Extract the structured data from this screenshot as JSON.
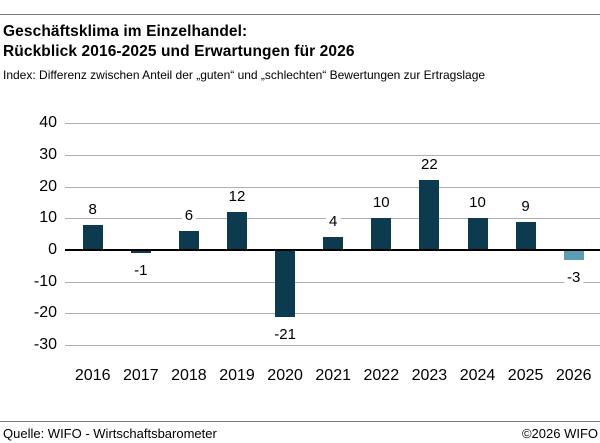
{
  "header": {
    "title_line1": "Geschäftsklima im Einzelhandel:",
    "title_line2": "Rückblick 2016-2025 und Erwartungen für 2026",
    "subtitle": "Index: Differenz zwischen Anteil der „guten“ und „schlechten“ Bewertungen zur Ertragslage"
  },
  "footer": {
    "source": "Quelle: WIFO - Wirtschaftsbarometer",
    "copyright": "©2026 WIFO"
  },
  "chart_data": {
    "type": "bar",
    "title": "Geschäftsklima im Einzelhandel: Rückblick 2016-2025 und Erwartungen für 2026",
    "subtitle": "Index: Differenz zwischen Anteil der „guten“ und „schlechten“ Bewertungen zur Ertragslage",
    "categories": [
      "2016",
      "2017",
      "2018",
      "2019",
      "2020",
      "2021",
      "2022",
      "2023",
      "2024",
      "2025",
      "2026"
    ],
    "values": [
      8,
      -1,
      6,
      12,
      -21,
      4,
      10,
      22,
      10,
      9,
      -3
    ],
    "xlabel": "",
    "ylabel": "",
    "ylim": [
      -30,
      40
    ],
    "ytick_step": 10,
    "yticks": [
      40,
      30,
      20,
      10,
      0,
      -10,
      -20,
      -30
    ],
    "grid": true,
    "legend": false,
    "bar_color_history": "#0c3b4f",
    "bar_color_forecast": "#5b9db2",
    "forecast_index": 10,
    "gridline_color": "#aeaeae",
    "zero_line_color": "#000000"
  }
}
